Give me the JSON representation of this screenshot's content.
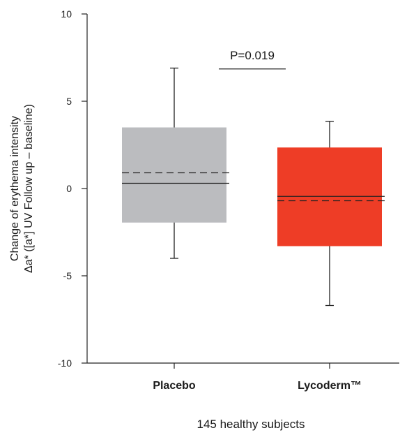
{
  "chart_data": {
    "type": "box",
    "ylabel_line1": "Change of erythema intensity",
    "ylabel_line2": "Δa* ([a*] UV Follow up – baseline)",
    "xlabel": "145 healthy subjects",
    "ylim": [
      -10,
      10
    ],
    "yticks": [
      10,
      5,
      0,
      -5,
      -10
    ],
    "ytick_labels": [
      "10",
      "5",
      "0",
      "-5",
      "-10"
    ],
    "grid": false,
    "categories": [
      "Placebo",
      "Lycoderm™"
    ],
    "series": [
      {
        "category": "Placebo",
        "whisker_low": -4.0,
        "q1": -1.95,
        "median": 0.3,
        "mean": 0.9,
        "q3": 3.5,
        "whisker_high": 6.9,
        "color": "#bbbcbf"
      },
      {
        "category": "Lycoderm™",
        "whisker_low": -6.7,
        "q1": -3.3,
        "median": -0.45,
        "mean": -0.7,
        "q3": 2.35,
        "whisker_high": 3.85,
        "color": "#ee3d26"
      }
    ],
    "annotation": {
      "text": "P=0.019",
      "y": 6.85
    }
  }
}
